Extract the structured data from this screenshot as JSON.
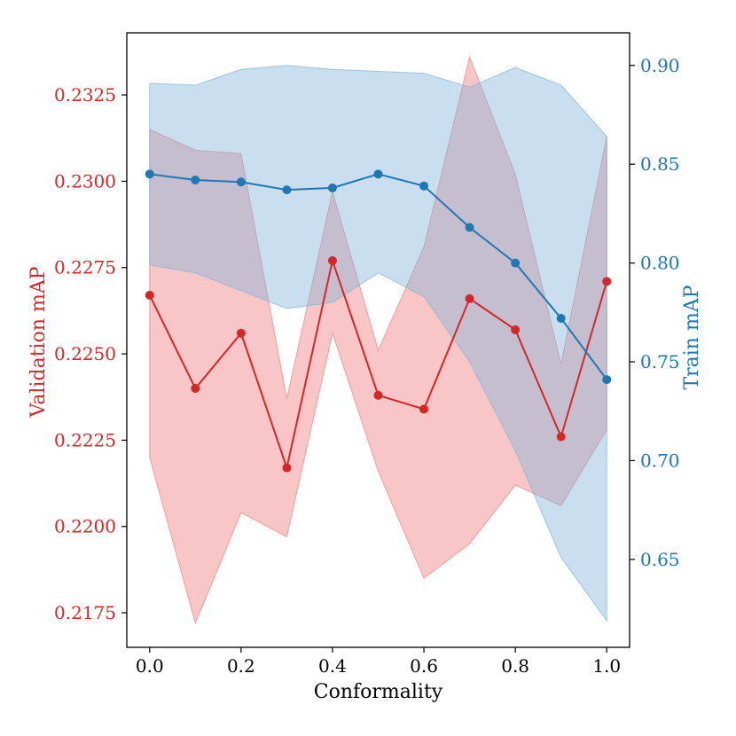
{
  "chart_data": {
    "type": "line",
    "xlabel": "Conformality",
    "x": [
      0.0,
      0.1,
      0.2,
      0.3,
      0.4,
      0.5,
      0.6,
      0.7,
      0.8,
      0.9,
      1.0
    ],
    "xlim": [
      -0.05,
      1.05
    ],
    "xticks": [
      0.0,
      0.2,
      0.4,
      0.6,
      0.8,
      1.0
    ],
    "xtick_labels": [
      "0.0",
      "0.2",
      "0.4",
      "0.6",
      "0.8",
      "1.0"
    ],
    "grid": false,
    "series": [
      {
        "name": "Validation mAP",
        "axis": "left",
        "color": "#d62728",
        "band_color": "#f08080",
        "values": [
          0.2267,
          0.224,
          0.2256,
          0.2217,
          0.2277,
          0.2238,
          0.2234,
          0.2266,
          0.2257,
          0.2226,
          0.2271
        ],
        "lower": [
          0.222,
          0.2172,
          0.2204,
          0.2197,
          0.2256,
          0.2216,
          0.2185,
          0.2195,
          0.2212,
          0.2206,
          0.2228
        ],
        "upper": [
          0.2315,
          0.2309,
          0.2308,
          0.2237,
          0.2297,
          0.2251,
          0.2281,
          0.2336,
          0.2302,
          0.2247,
          0.2313
        ]
      },
      {
        "name": "Train mAP",
        "axis": "right",
        "color": "#1f77b4",
        "band_color": "#7fb2d8",
        "values": [
          0.845,
          0.842,
          0.841,
          0.837,
          0.838,
          0.845,
          0.839,
          0.818,
          0.8,
          0.772,
          0.741
        ],
        "lower": [
          0.799,
          0.795,
          0.786,
          0.777,
          0.78,
          0.795,
          0.783,
          0.75,
          0.705,
          0.651,
          0.619
        ],
        "upper": [
          0.891,
          0.89,
          0.898,
          0.9,
          0.898,
          0.897,
          0.896,
          0.889,
          0.899,
          0.89,
          0.864
        ]
      }
    ],
    "left_axis": {
      "label": "Validation mAP",
      "ylim": [
        0.2165,
        0.2343
      ],
      "ticks": [
        0.2175,
        0.22,
        0.2225,
        0.225,
        0.2275,
        0.23,
        0.2325
      ],
      "tick_labels": [
        "0.2175",
        "0.2200",
        "0.2225",
        "0.2250",
        "0.2275",
        "0.2300",
        "0.2325"
      ]
    },
    "right_axis": {
      "label": "Train mAP",
      "ylim": [
        0.6055,
        0.9165
      ],
      "ticks": [
        0.65,
        0.7,
        0.75,
        0.8,
        0.85,
        0.9
      ],
      "tick_labels": [
        "0.65",
        "0.70",
        "0.75",
        "0.80",
        "0.85",
        "0.90"
      ]
    }
  }
}
